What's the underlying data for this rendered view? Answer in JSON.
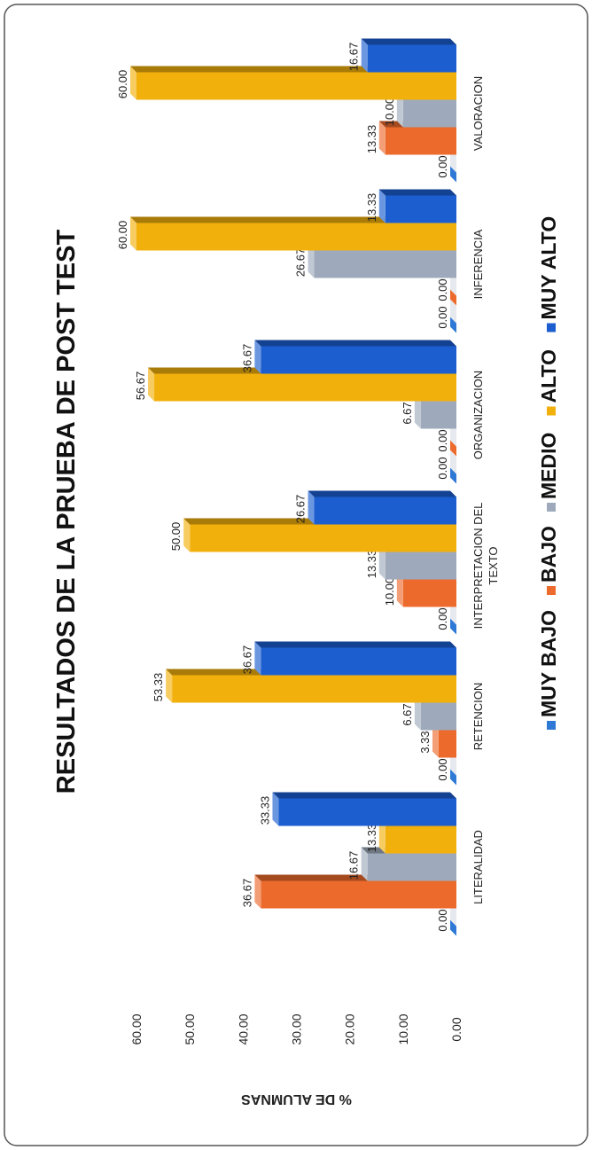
{
  "chart_data": {
    "type": "bar",
    "title": "RESULTADOS DE LA PRUEBA DE  POST TEST",
    "ylabel": "% DE ALUMNAS",
    "xlabel": "",
    "ylim": [
      0,
      60
    ],
    "y_ticks": [
      "0.00",
      "10.00",
      "20.00",
      "30.00",
      "40.00",
      "50.00",
      "60.00"
    ],
    "grid": false,
    "legend_position": "bottom",
    "categories": [
      "LITERALIDAD",
      "RETENCION",
      "INTERPRETACION DEL TEXTO",
      "ORGANIZACION",
      "INFERENCIA",
      "VALORACION"
    ],
    "category_lines": [
      [
        "LITERALIDAD"
      ],
      [
        "RETENCION"
      ],
      [
        "INTERPRETACION DEL",
        "TEXTO"
      ],
      [
        "ORGANIZACION"
      ],
      [
        "INFERENCIA"
      ],
      [
        "VALORACION"
      ]
    ],
    "series": [
      {
        "name": "MUY BAJO",
        "color": "#2f79d6",
        "values": [
          0,
          0,
          0,
          0,
          0,
          0
        ],
        "labels": [
          "0.00",
          "0.00",
          "0.00",
          "0.00",
          "0.00",
          "0.00"
        ]
      },
      {
        "name": "BAJO",
        "color": "#ec6a2c",
        "values": [
          36.67,
          3.33,
          10,
          0,
          0,
          13.33
        ],
        "labels": [
          "36.67",
          "3.33",
          "10.00",
          "0.00",
          "0.00",
          "13.33"
        ]
      },
      {
        "name": "MEDIO",
        "color": "#9eaabb",
        "values": [
          16.67,
          6.67,
          13.33,
          6.67,
          26.67,
          10
        ],
        "labels": [
          "16.67",
          "6.67",
          "13.33",
          "6.67",
          "26.67",
          "10.00"
        ]
      },
      {
        "name": "ALTO",
        "color": "#f2b00c",
        "values": [
          13.33,
          53.33,
          50,
          56.67,
          60,
          60
        ],
        "labels": [
          "13.33",
          "53.33",
          "50.00",
          "56.67",
          "60.00",
          "60.00"
        ]
      },
      {
        "name": "MUY ALTO",
        "color": "#1c5ed0",
        "values": [
          33.33,
          36.67,
          26.67,
          36.67,
          13.33,
          16.67
        ],
        "labels": [
          "33.33",
          "36.67",
          "26.67",
          "36.67",
          "13.33",
          "16.67"
        ]
      }
    ]
  }
}
